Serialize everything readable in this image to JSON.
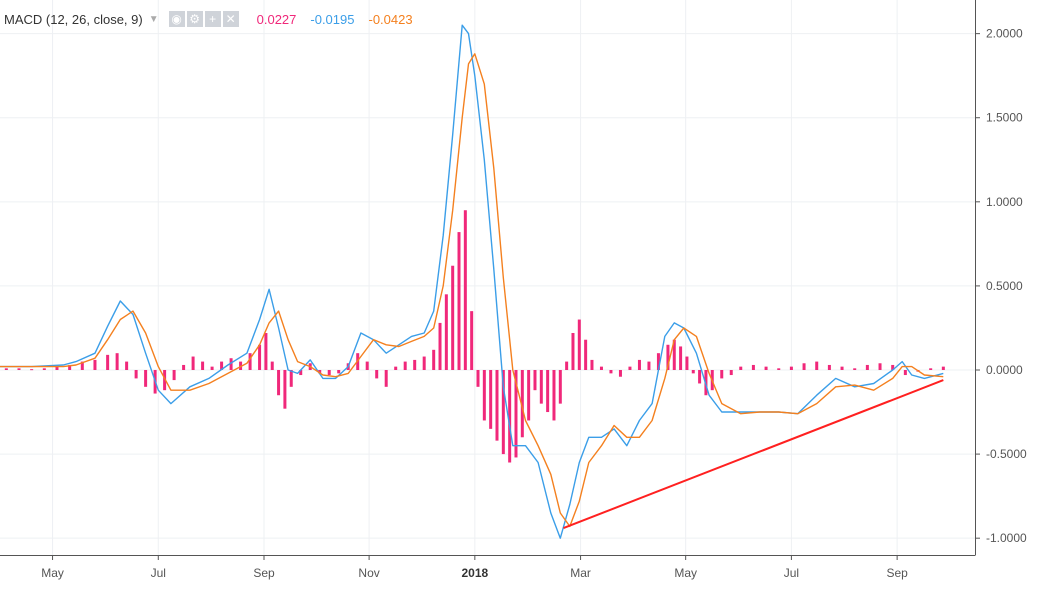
{
  "legend": {
    "title": "MACD (12, 26, close, 9)",
    "caret_icon": "chevron-down-icon",
    "buttons": [
      "eye-icon",
      "gear-icon",
      "plus-icon",
      "close-icon"
    ],
    "values": [
      {
        "text": "0.0227",
        "color": "#f0287a"
      },
      {
        "text": "-0.0195",
        "color": "#3b9ee8"
      },
      {
        "text": "-0.0423",
        "color": "#f4801f"
      }
    ]
  },
  "chart_data": {
    "type": "line",
    "title": "MACD (12, 26, close, 9)",
    "y_ticks": [
      2.0,
      1.5,
      1.0,
      0.5,
      0.0,
      -0.5,
      -1.0
    ],
    "y_tick_labels": [
      "2.0000",
      "1.5000",
      "1.0000",
      "0.5000",
      "0.0000",
      "-0.5000",
      "-1.0000"
    ],
    "ylim": [
      -1.1,
      2.2
    ],
    "x_ticks": [
      {
        "label": "May",
        "x": 2017.333,
        "bold": false
      },
      {
        "label": "Jul",
        "x": 2017.5,
        "bold": false
      },
      {
        "label": "Sep",
        "x": 2017.667,
        "bold": false
      },
      {
        "label": "Nov",
        "x": 2017.833,
        "bold": false
      },
      {
        "label": "2018",
        "x": 2018.0,
        "bold": true
      },
      {
        "label": "Mar",
        "x": 2018.167,
        "bold": false
      },
      {
        "label": "May",
        "x": 2018.333,
        "bold": false
      },
      {
        "label": "Jul",
        "x": 2018.5,
        "bold": false
      },
      {
        "label": "Sep",
        "x": 2018.667,
        "bold": false
      }
    ],
    "xlim": [
      2017.25,
      2018.79
    ],
    "grid": true,
    "colors": {
      "macd": "#3b9ee8",
      "signal": "#f4801f",
      "hist": "#f0287a",
      "trendline": "#ff2020"
    },
    "series": [
      {
        "name": "MACD",
        "color": "#3b9ee8",
        "points": [
          [
            2017.25,
            0.02
          ],
          [
            2017.3,
            0.02
          ],
          [
            2017.35,
            0.03
          ],
          [
            2017.37,
            0.05
          ],
          [
            2017.4,
            0.1
          ],
          [
            2017.42,
            0.26
          ],
          [
            2017.44,
            0.41
          ],
          [
            2017.46,
            0.33
          ],
          [
            2017.48,
            0.1
          ],
          [
            2017.5,
            -0.12
          ],
          [
            2017.52,
            -0.2
          ],
          [
            2017.55,
            -0.1
          ],
          [
            2017.58,
            -0.05
          ],
          [
            2017.61,
            0.03
          ],
          [
            2017.64,
            0.1
          ],
          [
            2017.66,
            0.3
          ],
          [
            2017.675,
            0.48
          ],
          [
            2017.69,
            0.25
          ],
          [
            2017.705,
            0.0
          ],
          [
            2017.72,
            -0.02
          ],
          [
            2017.74,
            0.06
          ],
          [
            2017.76,
            -0.05
          ],
          [
            2017.78,
            -0.05
          ],
          [
            2017.8,
            0.02
          ],
          [
            2017.82,
            0.22
          ],
          [
            2017.84,
            0.18
          ],
          [
            2017.86,
            0.1
          ],
          [
            2017.88,
            0.15
          ],
          [
            2017.9,
            0.2
          ],
          [
            2017.92,
            0.22
          ],
          [
            2017.935,
            0.35
          ],
          [
            2017.95,
            0.8
          ],
          [
            2017.965,
            1.4
          ],
          [
            2017.98,
            2.05
          ],
          [
            2017.99,
            2.0
          ],
          [
            2018.0,
            1.75
          ],
          [
            2018.015,
            1.25
          ],
          [
            2018.03,
            0.6
          ],
          [
            2018.045,
            -0.1
          ],
          [
            2018.06,
            -0.45
          ],
          [
            2018.08,
            -0.45
          ],
          [
            2018.1,
            -0.55
          ],
          [
            2018.12,
            -0.85
          ],
          [
            2018.135,
            -1.0
          ],
          [
            2018.15,
            -0.8
          ],
          [
            2018.165,
            -0.55
          ],
          [
            2018.18,
            -0.4
          ],
          [
            2018.2,
            -0.4
          ],
          [
            2018.22,
            -0.35
          ],
          [
            2018.24,
            -0.45
          ],
          [
            2018.26,
            -0.3
          ],
          [
            2018.28,
            -0.2
          ],
          [
            2018.3,
            0.2
          ],
          [
            2018.315,
            0.28
          ],
          [
            2018.33,
            0.25
          ],
          [
            2018.35,
            0.1
          ],
          [
            2018.37,
            -0.15
          ],
          [
            2018.39,
            -0.25
          ],
          [
            2018.42,
            -0.25
          ],
          [
            2018.45,
            -0.25
          ],
          [
            2018.48,
            -0.25
          ],
          [
            2018.51,
            -0.26
          ],
          [
            2018.54,
            -0.15
          ],
          [
            2018.57,
            -0.05
          ],
          [
            2018.6,
            -0.1
          ],
          [
            2018.63,
            -0.08
          ],
          [
            2018.66,
            0.0
          ],
          [
            2018.675,
            0.05
          ],
          [
            2018.69,
            -0.03
          ],
          [
            2018.71,
            -0.05
          ],
          [
            2018.74,
            -0.02
          ]
        ]
      },
      {
        "name": "Signal",
        "color": "#f4801f",
        "points": [
          [
            2017.25,
            0.02
          ],
          [
            2017.3,
            0.02
          ],
          [
            2017.35,
            0.02
          ],
          [
            2017.37,
            0.03
          ],
          [
            2017.4,
            0.07
          ],
          [
            2017.42,
            0.18
          ],
          [
            2017.44,
            0.3
          ],
          [
            2017.46,
            0.35
          ],
          [
            2017.48,
            0.22
          ],
          [
            2017.5,
            0.02
          ],
          [
            2017.52,
            -0.12
          ],
          [
            2017.55,
            -0.12
          ],
          [
            2017.58,
            -0.08
          ],
          [
            2017.61,
            -0.02
          ],
          [
            2017.64,
            0.04
          ],
          [
            2017.66,
            0.15
          ],
          [
            2017.675,
            0.28
          ],
          [
            2017.69,
            0.35
          ],
          [
            2017.705,
            0.18
          ],
          [
            2017.72,
            0.05
          ],
          [
            2017.74,
            0.02
          ],
          [
            2017.76,
            -0.03
          ],
          [
            2017.78,
            -0.04
          ],
          [
            2017.8,
            -0.02
          ],
          [
            2017.82,
            0.08
          ],
          [
            2017.84,
            0.18
          ],
          [
            2017.86,
            0.15
          ],
          [
            2017.88,
            0.14
          ],
          [
            2017.9,
            0.17
          ],
          [
            2017.92,
            0.2
          ],
          [
            2017.935,
            0.25
          ],
          [
            2017.95,
            0.5
          ],
          [
            2017.965,
            0.95
          ],
          [
            2017.98,
            1.5
          ],
          [
            2017.99,
            1.82
          ],
          [
            2018.0,
            1.88
          ],
          [
            2018.015,
            1.7
          ],
          [
            2018.03,
            1.2
          ],
          [
            2018.045,
            0.55
          ],
          [
            2018.06,
            0.0
          ],
          [
            2018.08,
            -0.3
          ],
          [
            2018.1,
            -0.45
          ],
          [
            2018.12,
            -0.62
          ],
          [
            2018.135,
            -0.85
          ],
          [
            2018.15,
            -0.93
          ],
          [
            2018.165,
            -0.78
          ],
          [
            2018.18,
            -0.55
          ],
          [
            2018.2,
            -0.45
          ],
          [
            2018.22,
            -0.33
          ],
          [
            2018.24,
            -0.4
          ],
          [
            2018.26,
            -0.4
          ],
          [
            2018.28,
            -0.3
          ],
          [
            2018.3,
            -0.05
          ],
          [
            2018.315,
            0.18
          ],
          [
            2018.33,
            0.25
          ],
          [
            2018.35,
            0.2
          ],
          [
            2018.37,
            -0.02
          ],
          [
            2018.39,
            -0.2
          ],
          [
            2018.42,
            -0.26
          ],
          [
            2018.45,
            -0.25
          ],
          [
            2018.48,
            -0.25
          ],
          [
            2018.51,
            -0.26
          ],
          [
            2018.54,
            -0.2
          ],
          [
            2018.57,
            -0.1
          ],
          [
            2018.6,
            -0.09
          ],
          [
            2018.63,
            -0.12
          ],
          [
            2018.66,
            -0.05
          ],
          [
            2018.675,
            0.02
          ],
          [
            2018.69,
            0.02
          ],
          [
            2018.71,
            -0.03
          ],
          [
            2018.74,
            -0.04
          ]
        ]
      }
    ],
    "histogram": {
      "name": "Histogram",
      "color": "#f0287a",
      "points": [
        [
          2017.26,
          0.01
        ],
        [
          2017.28,
          0.01
        ],
        [
          2017.3,
          0.005
        ],
        [
          2017.32,
          0.01
        ],
        [
          2017.34,
          0.02
        ],
        [
          2017.36,
          0.03
        ],
        [
          2017.38,
          0.05
        ],
        [
          2017.4,
          0.06
        ],
        [
          2017.42,
          0.09
        ],
        [
          2017.435,
          0.1
        ],
        [
          2017.45,
          0.05
        ],
        [
          2017.465,
          -0.05
        ],
        [
          2017.48,
          -0.1
        ],
        [
          2017.495,
          -0.14
        ],
        [
          2017.51,
          -0.12
        ],
        [
          2017.525,
          -0.06
        ],
        [
          2017.54,
          0.03
        ],
        [
          2017.555,
          0.08
        ],
        [
          2017.57,
          0.05
        ],
        [
          2017.585,
          0.02
        ],
        [
          2017.6,
          0.05
        ],
        [
          2017.615,
          0.07
        ],
        [
          2017.63,
          0.05
        ],
        [
          2017.645,
          0.1
        ],
        [
          2017.66,
          0.15
        ],
        [
          2017.67,
          0.22
        ],
        [
          2017.68,
          0.05
        ],
        [
          2017.69,
          -0.15
        ],
        [
          2017.7,
          -0.23
        ],
        [
          2017.71,
          -0.1
        ],
        [
          2017.725,
          -0.03
        ],
        [
          2017.74,
          0.04
        ],
        [
          2017.755,
          -0.02
        ],
        [
          2017.77,
          -0.03
        ],
        [
          2017.785,
          -0.02
        ],
        [
          2017.8,
          0.04
        ],
        [
          2017.815,
          0.1
        ],
        [
          2017.83,
          0.05
        ],
        [
          2017.845,
          -0.05
        ],
        [
          2017.86,
          -0.1
        ],
        [
          2017.875,
          0.02
        ],
        [
          2017.89,
          0.05
        ],
        [
          2017.905,
          0.06
        ],
        [
          2017.92,
          0.08
        ],
        [
          2017.935,
          0.12
        ],
        [
          2017.945,
          0.28
        ],
        [
          2017.955,
          0.45
        ],
        [
          2017.965,
          0.62
        ],
        [
          2017.975,
          0.82
        ],
        [
          2017.985,
          0.95
        ],
        [
          2017.995,
          0.35
        ],
        [
          2018.005,
          -0.1
        ],
        [
          2018.015,
          -0.3
        ],
        [
          2018.025,
          -0.35
        ],
        [
          2018.035,
          -0.42
        ],
        [
          2018.045,
          -0.5
        ],
        [
          2018.055,
          -0.55
        ],
        [
          2018.065,
          -0.52
        ],
        [
          2018.075,
          -0.4
        ],
        [
          2018.085,
          -0.3
        ],
        [
          2018.095,
          -0.12
        ],
        [
          2018.105,
          -0.2
        ],
        [
          2018.115,
          -0.25
        ],
        [
          2018.125,
          -0.3
        ],
        [
          2018.135,
          -0.2
        ],
        [
          2018.145,
          0.05
        ],
        [
          2018.155,
          0.22
        ],
        [
          2018.165,
          0.3
        ],
        [
          2018.175,
          0.18
        ],
        [
          2018.185,
          0.06
        ],
        [
          2018.2,
          0.02
        ],
        [
          2018.215,
          -0.02
        ],
        [
          2018.23,
          -0.04
        ],
        [
          2018.245,
          0.02
        ],
        [
          2018.26,
          0.06
        ],
        [
          2018.275,
          0.05
        ],
        [
          2018.29,
          0.1
        ],
        [
          2018.305,
          0.15
        ],
        [
          2018.315,
          0.18
        ],
        [
          2018.325,
          0.14
        ],
        [
          2018.335,
          0.08
        ],
        [
          2018.345,
          -0.02
        ],
        [
          2018.355,
          -0.08
        ],
        [
          2018.365,
          -0.15
        ],
        [
          2018.375,
          -0.12
        ],
        [
          2018.39,
          -0.05
        ],
        [
          2018.405,
          -0.03
        ],
        [
          2018.42,
          0.02
        ],
        [
          2018.44,
          0.03
        ],
        [
          2018.46,
          0.02
        ],
        [
          2018.48,
          0.01
        ],
        [
          2018.5,
          0.02
        ],
        [
          2018.52,
          0.04
        ],
        [
          2018.54,
          0.05
        ],
        [
          2018.56,
          0.03
        ],
        [
          2018.58,
          0.02
        ],
        [
          2018.6,
          0.01
        ],
        [
          2018.62,
          0.03
        ],
        [
          2018.64,
          0.04
        ],
        [
          2018.66,
          0.03
        ],
        [
          2018.68,
          -0.03
        ],
        [
          2018.7,
          -0.01
        ],
        [
          2018.72,
          0.01
        ],
        [
          2018.74,
          0.02
        ]
      ]
    },
    "trendline": {
      "color": "#ff2020",
      "points": [
        [
          2018.14,
          -0.94
        ],
        [
          2018.74,
          -0.06
        ]
      ]
    }
  }
}
